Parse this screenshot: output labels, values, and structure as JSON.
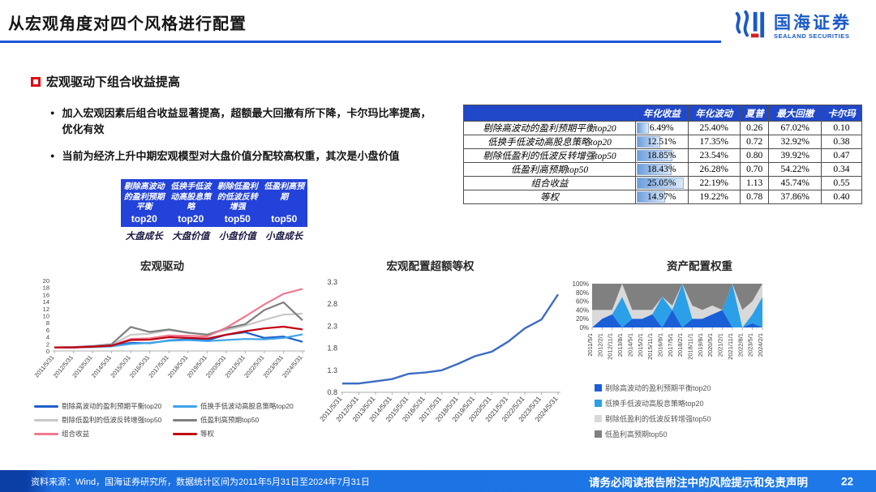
{
  "header": {
    "title": "从宏观角度对四个风格进行配置",
    "logo_cn": "国海证券",
    "logo_en": "SEALAND SECURITIES"
  },
  "section": {
    "title": "宏观驱动下组合收益提高"
  },
  "bullets": [
    "加入宏观因素后组合收益显著提高，超额最大回撤有所下降，卡尔玛比率提高，优化有效",
    "当前为经济上升中期宏观模型对大盘价值分配较高权重，其次是小盘价值"
  ],
  "strategy_boxes": {
    "items": [
      {
        "name": "剔除高波动的盈利预期平衡",
        "top": "top20"
      },
      {
        "name": "低换手低波动高股息策略",
        "top": "top20"
      },
      {
        "name": "剔除低盈利的低波反转增强",
        "top": "top50"
      },
      {
        "name": "低盈利高预期",
        "top": "top50"
      }
    ],
    "labels": [
      "大盘成长",
      "大盘价值",
      "小盘价值",
      "小盘成长"
    ]
  },
  "table": {
    "headers": [
      "",
      "年化收益",
      "年化波动",
      "夏普",
      "最大回撤",
      "卡尔玛"
    ],
    "bar_max": 25.05,
    "rows": [
      {
        "label": "剔除高波动的盈利预期平衡top20",
        "annual_return": "6.49%",
        "bar": 6.49,
        "vol": "25.40%",
        "sharpe": "0.26",
        "mdd": "67.02%",
        "calmar": "0.10"
      },
      {
        "label": "低换手低波动高股息策略top20",
        "annual_return": "12.51%",
        "bar": 12.51,
        "vol": "17.35%",
        "sharpe": "0.72",
        "mdd": "32.92%",
        "calmar": "0.38"
      },
      {
        "label": "剔除低盈利的低波反转增强top50",
        "annual_return": "18.85%",
        "bar": 18.85,
        "vol": "23.54%",
        "sharpe": "0.80",
        "mdd": "39.92%",
        "calmar": "0.47"
      },
      {
        "label": "低盈利高预期top50",
        "annual_return": "18.43%",
        "bar": 18.43,
        "vol": "26.28%",
        "sharpe": "0.70",
        "mdd": "54.22%",
        "calmar": "0.34"
      },
      {
        "label": "组合收益",
        "annual_return": "25.05%",
        "bar": 25.05,
        "vol": "22.19%",
        "sharpe": "1.13",
        "mdd": "45.74%",
        "calmar": "0.55"
      },
      {
        "label": "等权",
        "annual_return": "14.97%",
        "bar": 14.97,
        "vol": "19.22%",
        "sharpe": "0.78",
        "mdd": "37.86%",
        "calmar": "0.40"
      }
    ]
  },
  "chart_data": [
    {
      "type": "line",
      "title": "宏观驱动",
      "x": [
        "2011/5/31",
        "2012/5/31",
        "2013/5/31",
        "2014/5/31",
        "2015/5/31",
        "2016/5/31",
        "2017/5/31",
        "2018/5/31",
        "2019/5/31",
        "2020/5/31",
        "2021/5/31",
        "2022/5/31",
        "2023/5/31",
        "2024/5/31"
      ],
      "ylim": [
        0,
        20
      ],
      "ytick_step": 2,
      "grid": false,
      "legend_position": "bottom",
      "series": [
        {
          "name": "剔除高波动的盈利预期平衡top20",
          "color": "#1f5fc8",
          "values": [
            1,
            1,
            1.2,
            1.4,
            2.3,
            2.2,
            3,
            3.3,
            3,
            4.6,
            5.3,
            3.7,
            4.1,
            2.6
          ]
        },
        {
          "name": "低换手低波动高股息策略top20",
          "color": "#3fa3e8",
          "values": [
            1,
            1,
            1.1,
            1.3,
            2,
            2.3,
            2.9,
            3.1,
            2.8,
            3.1,
            3.4,
            3.3,
            3.7,
            4.7
          ]
        },
        {
          "name": "剔除低盈利的低波反转增强top50",
          "color": "#c8c8c8",
          "values": [
            1,
            1.1,
            1.3,
            1.7,
            4.6,
            4.9,
            5.9,
            5.1,
            4.7,
            5.9,
            7.2,
            8.8,
            10.3,
            10.6
          ]
        },
        {
          "name": "低盈利高预期top50",
          "color": "#7f7f7f",
          "values": [
            1,
            1.1,
            1.4,
            1.9,
            6.8,
            5.4,
            6.1,
            5.2,
            4.6,
            6.4,
            7.6,
            11.6,
            13.8,
            8.7
          ]
        },
        {
          "name": "组合收益",
          "color": "#f0798f",
          "values": [
            1,
            1,
            1.2,
            1.5,
            3.4,
            3.6,
            4.4,
            4.3,
            4.1,
            6.6,
            9.8,
            13.2,
            16.2,
            17.6
          ]
        },
        {
          "name": "等权",
          "color": "#c00010",
          "values": [
            1,
            1,
            1.2,
            1.5,
            3.1,
            3.2,
            3.9,
            3.7,
            3.5,
            4.6,
            5.6,
            6.4,
            6.9,
            6.1
          ]
        }
      ]
    },
    {
      "type": "line",
      "title": "宏观配置超额等权",
      "x": [
        "2011/5/31",
        "2012/5/31",
        "2013/5/31",
        "2014/5/31",
        "2015/5/31",
        "2016/5/31",
        "2017/5/31",
        "2018/5/31",
        "2019/5/31",
        "2020/5/31",
        "2021/5/31",
        "2022/5/31",
        "2023/5/31",
        "2024/5/31"
      ],
      "ylim": [
        0.8,
        3.3
      ],
      "yticks": [
        0.8,
        1.3,
        1.8,
        2.3,
        2.8,
        3.3
      ],
      "grid": false,
      "legend_position": "none",
      "series": [
        {
          "name": "宏观配置超额等权",
          "color": "#3c6cc4",
          "values": [
            1.0,
            1.0,
            1.05,
            1.1,
            1.22,
            1.25,
            1.3,
            1.45,
            1.62,
            1.72,
            1.95,
            2.25,
            2.45,
            3.02
          ]
        }
      ]
    },
    {
      "type": "area100",
      "title": "资产配置权重",
      "x": [
        "2011/5/1",
        "2012/2/1",
        "2012/11/1",
        "2013/8/1",
        "2014/5/1",
        "2015/2/1",
        "2015/11/1",
        "2016/8/1",
        "2017/5/1",
        "2018/2/1",
        "2018/11/1",
        "2019/8/1",
        "2020/5/1",
        "2021/2/1",
        "2021/11/1",
        "2022/8/1",
        "2023/5/1",
        "2024/2/1"
      ],
      "yticks": [
        "0%",
        "20%",
        "40%",
        "60%",
        "80%",
        "100%"
      ],
      "legend_position": "bottom",
      "series": [
        {
          "name": "剔除高波动的盈利预期平衡top20",
          "color": "#1a5fd6",
          "values": [
            0,
            20,
            30,
            0,
            20,
            20,
            30,
            0,
            40,
            0,
            20,
            20,
            30,
            40,
            0,
            0,
            10,
            0
          ]
        },
        {
          "name": "低换手低波动高股息策略top20",
          "color": "#2ba0e8",
          "values": [
            0,
            0,
            0,
            70,
            0,
            0,
            0,
            70,
            0,
            100,
            0,
            0,
            0,
            0,
            100,
            0,
            20,
            70
          ]
        },
        {
          "name": "剔除低盈利的低波反转增强top50",
          "color": "#d9d9d9",
          "values": [
            40,
            20,
            10,
            30,
            20,
            20,
            10,
            0,
            10,
            0,
            30,
            20,
            20,
            0,
            0,
            40,
            30,
            30
          ]
        },
        {
          "name": "低盈利高预期top50",
          "color": "#808080",
          "values": [
            60,
            60,
            60,
            0,
            60,
            60,
            60,
            30,
            50,
            0,
            50,
            60,
            50,
            60,
            0,
            60,
            40,
            0
          ]
        }
      ]
    }
  ],
  "footer": {
    "source": "资料来源：Wind，国海证券研究所，数据统计区间为2011年5月31日至2024年7月31日",
    "notice": "请务必阅读报告附注中的风险提示和免责声明",
    "page": "22"
  },
  "colors": {
    "accent_blue": "#1c57d8",
    "diagram_blue": "#2342d9",
    "table_header_blue": "#2148c8",
    "footer_blue": "#1e79e8",
    "red_marker": "#e00a14"
  }
}
